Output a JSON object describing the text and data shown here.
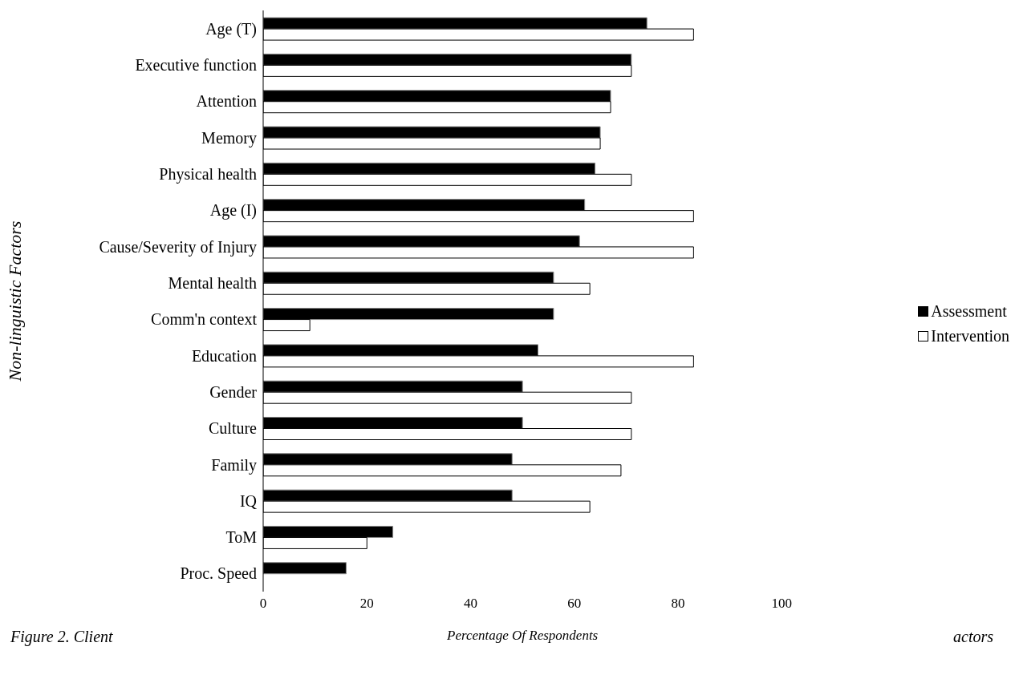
{
  "chart_data": {
    "type": "bar",
    "orientation": "horizontal",
    "xlabel": "Percentage Of Respondents",
    "ylabel": "Non-linguistic Factors",
    "categories": [
      "Age (T)",
      "Executive function",
      "Attention",
      "Memory",
      "Physical health",
      "Age (I)",
      "Cause/Severity of Injury",
      "Mental health",
      "Comm'n context",
      "Education",
      "Gender",
      "Culture",
      "Family",
      "IQ",
      "ToM",
      "Proc. Speed"
    ],
    "series": [
      {
        "name": "Assessment",
        "color": "#000000",
        "values": [
          74,
          71,
          67,
          65,
          64,
          62,
          61,
          56,
          56,
          53,
          50,
          50,
          48,
          48,
          25,
          16
        ]
      },
      {
        "name": "Intervention",
        "color": "#ffffff",
        "values": [
          83,
          71,
          67,
          65,
          71,
          83,
          83,
          63,
          9,
          83,
          71,
          71,
          69,
          63,
          20,
          0
        ]
      }
    ],
    "xlim": [
      0,
      100
    ],
    "xticks": [
      0,
      20,
      40,
      60,
      80,
      100
    ],
    "grid": false,
    "legend": "right",
    "annotations": [
      "Figure 2. Client",
      "actors"
    ]
  }
}
